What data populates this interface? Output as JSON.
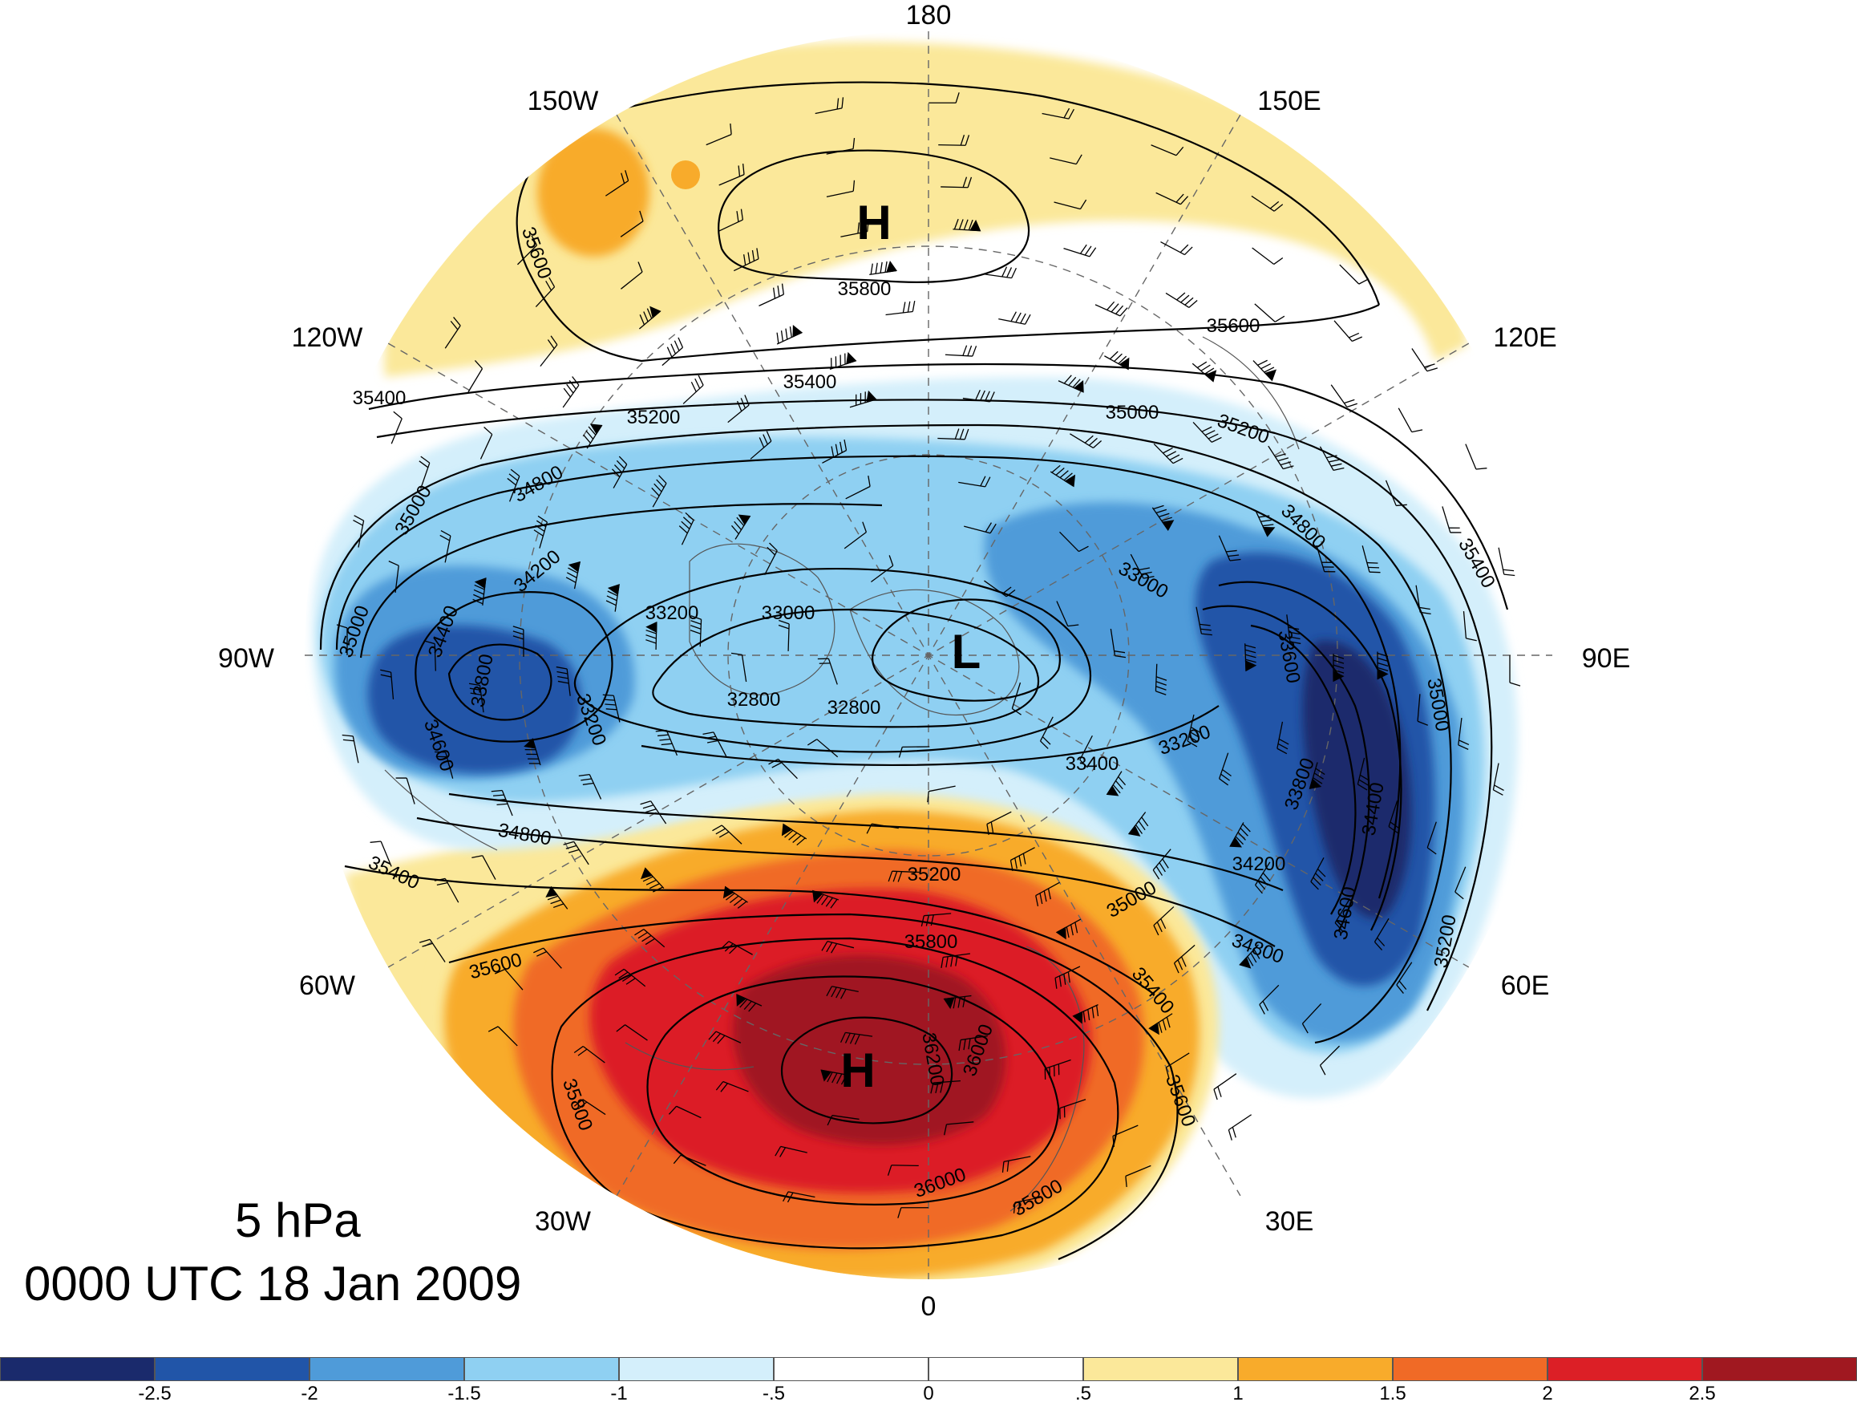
{
  "level": "5 hPa",
  "valid_time": "0000 UTC 18 Jan 2009",
  "longitude_labels": [
    {
      "id": "180",
      "text": "180"
    },
    {
      "id": "150W",
      "text": "150W"
    },
    {
      "id": "150E",
      "text": "150E"
    },
    {
      "id": "120W",
      "text": "120W"
    },
    {
      "id": "120E",
      "text": "120E"
    },
    {
      "id": "90W",
      "text": "90W"
    },
    {
      "id": "90E",
      "text": "90E"
    },
    {
      "id": "60W",
      "text": "60W"
    },
    {
      "id": "60E",
      "text": "60E"
    },
    {
      "id": "30W",
      "text": "30W"
    },
    {
      "id": "30E",
      "text": "30E"
    },
    {
      "id": "0",
      "text": "0"
    }
  ],
  "pressure_centers": [
    {
      "id": "high-pacific",
      "text": "H"
    },
    {
      "id": "low-polar",
      "text": "L"
    },
    {
      "id": "high-atlantic",
      "text": "H"
    }
  ],
  "contour_labels": [
    "35600",
    "35800",
    "35600",
    "35400",
    "35400",
    "35200",
    "35000",
    "35200",
    "35000",
    "34800",
    "34800",
    "35400",
    "34200",
    "33000",
    "33200",
    "33000",
    "32800",
    "32800",
    "35000",
    "34400",
    "33800",
    "33200",
    "34600",
    "33400",
    "33200",
    "33800",
    "35000",
    "33600",
    "34400",
    "34800",
    "34200",
    "34600",
    "35200",
    "35400",
    "35200",
    "35800",
    "35000",
    "34800",
    "35600",
    "35400",
    "36000",
    "36200",
    "35600",
    "35800",
    "36000",
    "35800"
  ],
  "colorbar": {
    "colors": [
      "#1a2a6c",
      "#2155a8",
      "#4f9bd9",
      "#8fd0f2",
      "#d4effb",
      "#ffffff",
      "#ffffff",
      "#fbe89a",
      "#f8ab2b",
      "#f06a26",
      "#dc1f26",
      "#a01820"
    ],
    "ticks": [
      "-2.5",
      "-2",
      "-1.5",
      "-1",
      "-.5",
      "0",
      ".5",
      "1",
      "1.5",
      "2",
      "2.5"
    ]
  }
}
